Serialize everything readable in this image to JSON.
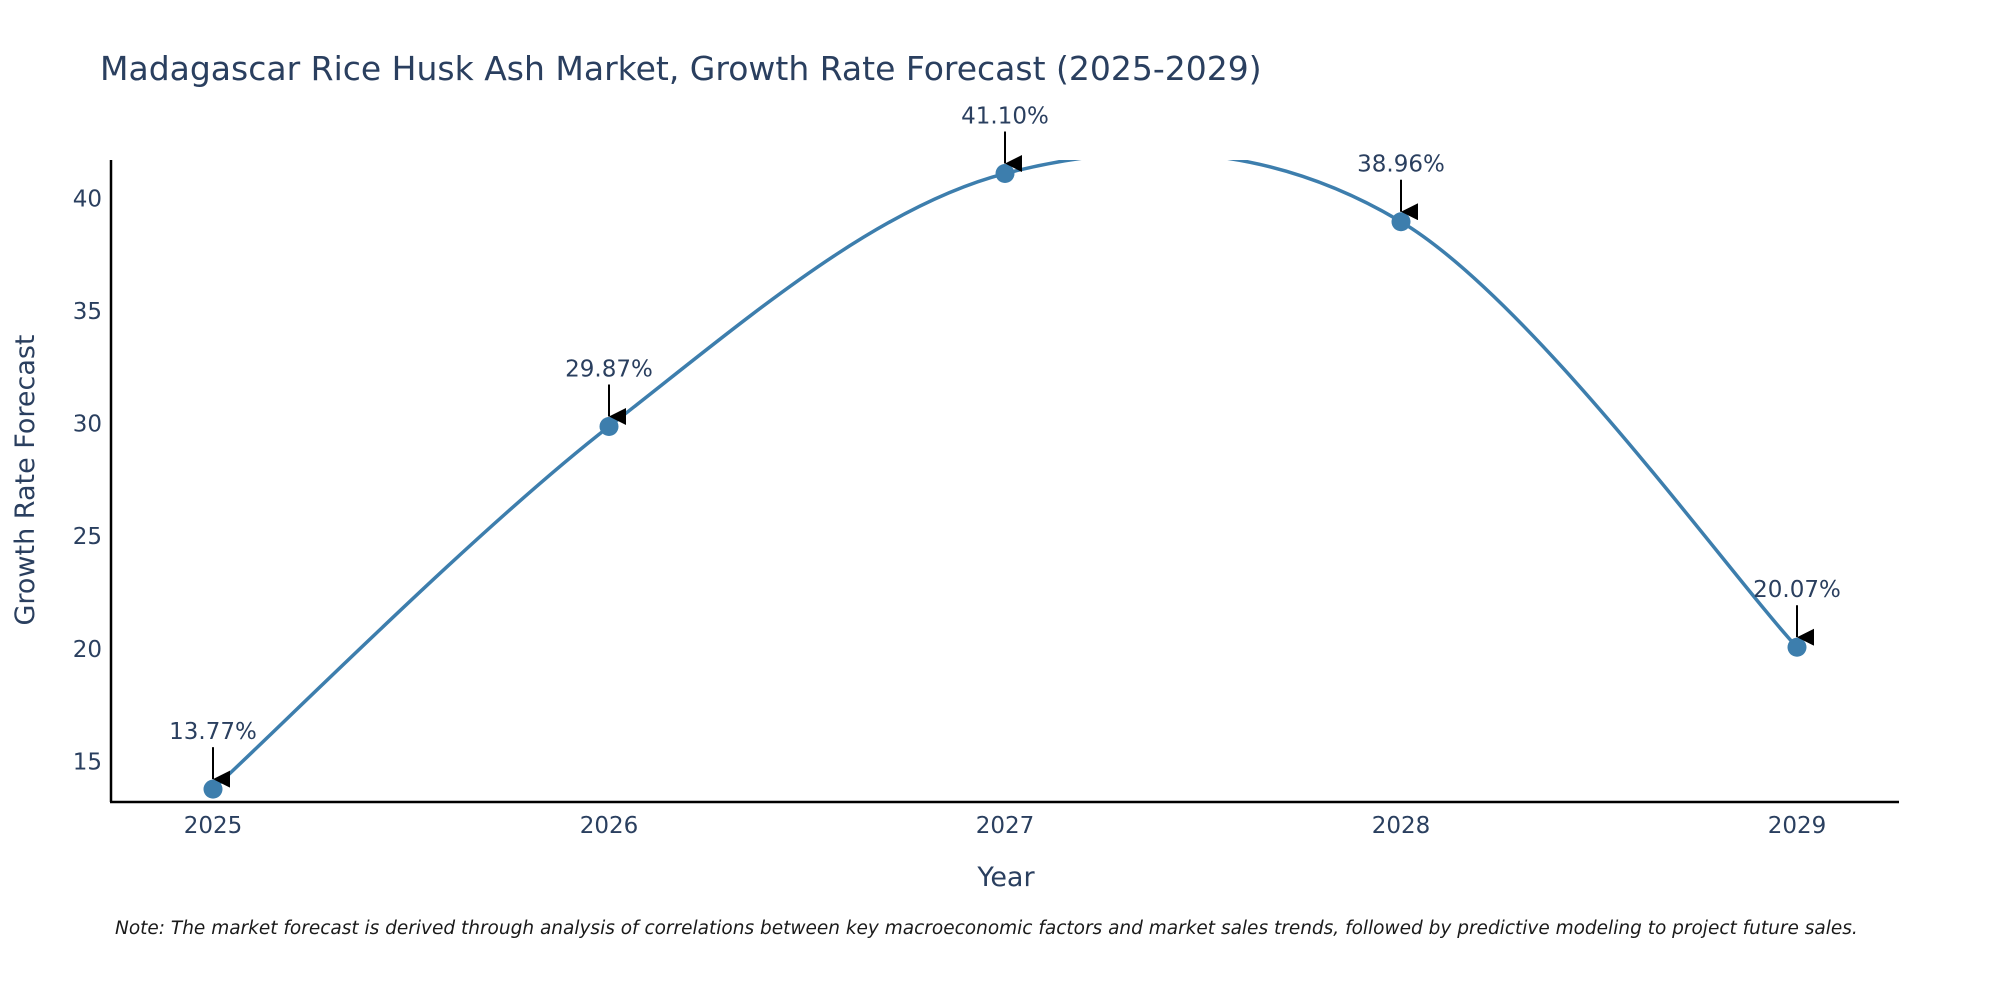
{
  "chart_data": {
    "type": "line",
    "title": "Madagascar Rice Husk Ash Market, Growth Rate Forecast (2025-2029)",
    "xlabel": "Year",
    "ylabel": "Growth Rate Forecast",
    "categories": [
      "2025",
      "2026",
      "2027",
      "2028",
      "2029"
    ],
    "values": [
      13.77,
      29.87,
      41.1,
      38.96,
      20.07
    ],
    "data_labels": [
      "13.77%",
      "29.87%",
      "41.10%",
      "38.96%",
      "20.07%"
    ],
    "y_ticks": [
      15,
      20,
      25,
      30,
      35,
      40
    ],
    "ylim": [
      13.2,
      41.7
    ],
    "grid": false,
    "line_shape": "spline",
    "line_color": "#3d7ead",
    "marker_color": "#3d7ead",
    "arrow_color": "#000000",
    "axis_color": "#000000"
  },
  "note": "Note: The market forecast is derived through analysis of correlations between key macroeconomic factors and market sales trends, followed by predictive modeling to project future sales."
}
